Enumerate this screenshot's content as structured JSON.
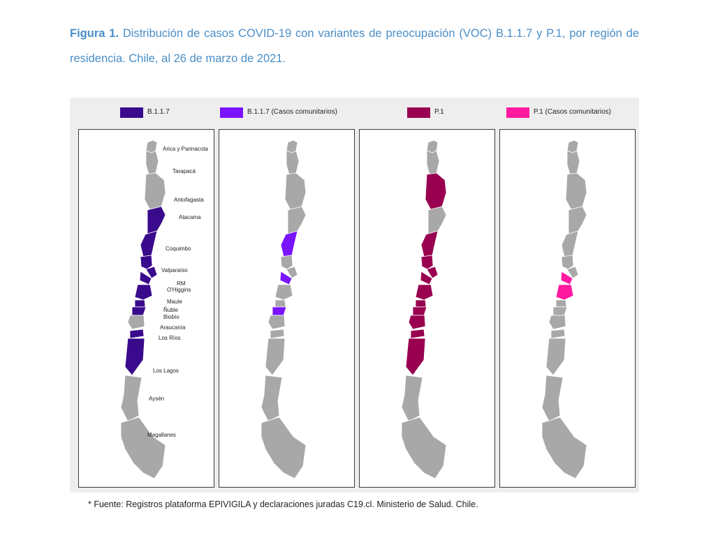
{
  "caption": {
    "lead": "Figura 1.",
    "text": " Distribución de casos COVID-19 con variantes de preocupación (VOC) B.1.1.7 y P.1, por región de residencia. Chile, al 26 de marzo de 2021."
  },
  "legend": [
    {
      "label": "B.1.1.7",
      "color": "#3a0a8c"
    },
    {
      "label": "B.1.1.7 (Casos comunitarios)",
      "color": "#7a14ff"
    },
    {
      "label": "P.1",
      "color": "#990050"
    },
    {
      "label": "P.1 (Casos comunitarios)",
      "color": "#ff1aa0"
    }
  ],
  "base_color": "#a8a8a8",
  "region_names": [
    "Arica y Parinacota",
    "Tarapacá",
    "Antofagasta",
    "Atacama",
    "Coquimbo",
    "Valparaíso",
    "RM",
    "O'Higgins",
    "Maule",
    "Ñuble",
    "Biobío",
    "Araucanía",
    "Los Ríos",
    "Los Lagos",
    "Aysén",
    "Magallanes"
  ],
  "maps": [
    {
      "name": "B.1.1.7",
      "highlighted": [
        "Atacama",
        "Coquimbo",
        "Valparaíso",
        "RM",
        "O'Higgins",
        "Maule",
        "Ñuble",
        "Biobío",
        "Los Ríos",
        "Los Lagos"
      ],
      "show_labels": true
    },
    {
      "name": "B.1.1.7 (Casos comunitarios)",
      "highlighted": [
        "Coquimbo",
        "O'Higgins",
        "Biobío"
      ],
      "show_labels": false
    },
    {
      "name": "P.1",
      "highlighted": [
        "Antofagasta",
        "Coquimbo",
        "Valparaíso",
        "RM",
        "O'Higgins",
        "Maule",
        "Ñuble",
        "Biobío",
        "Araucanía",
        "Los Ríos",
        "Los Lagos"
      ],
      "show_labels": false
    },
    {
      "name": "P.1 (Casos comunitarios)",
      "highlighted": [
        "O'Higgins",
        "Maule"
      ],
      "show_labels": false
    }
  ],
  "footnote": "* Fuente: Registros plataforma EPIVIGILA y declaraciones juradas C19.cl. Ministerio de Salud. Chile."
}
